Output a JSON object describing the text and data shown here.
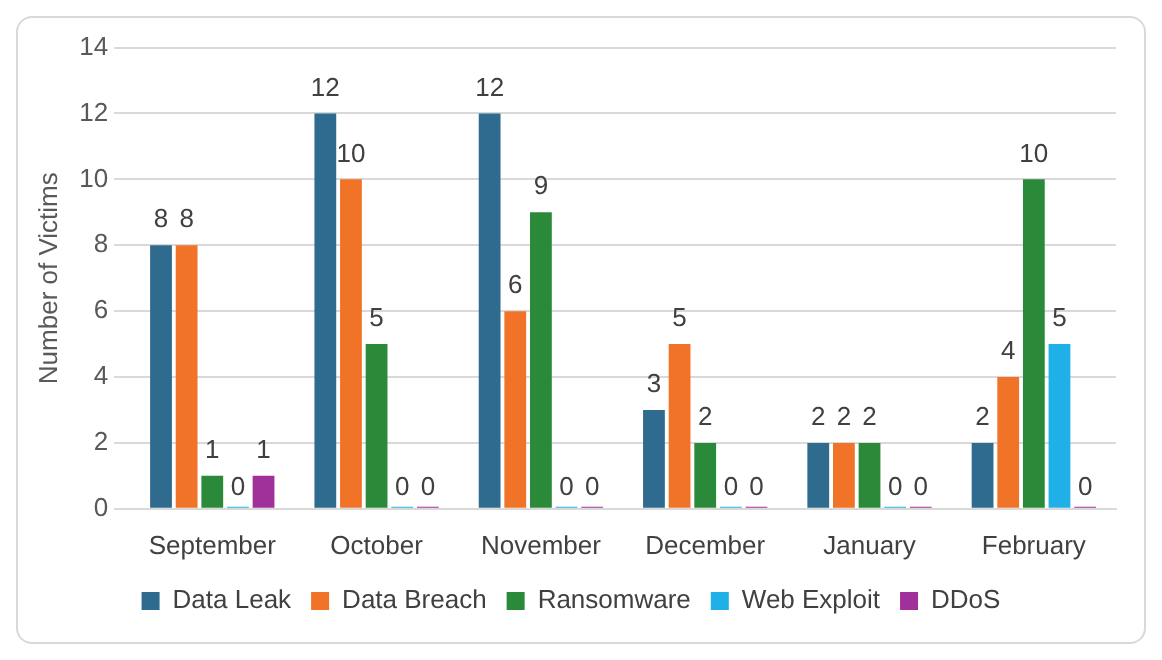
{
  "chart_data": {
    "type": "bar",
    "ylabel": "Number of Victims",
    "categories": [
      "September",
      "October",
      "November",
      "December",
      "January",
      "February"
    ],
    "series": [
      {
        "name": "Data Leak",
        "color": "#2e6b8f",
        "values": [
          8,
          12,
          12,
          3,
          2,
          2
        ]
      },
      {
        "name": "Data Breach",
        "color": "#f07328",
        "values": [
          8,
          10,
          6,
          5,
          2,
          4
        ]
      },
      {
        "name": "Ransomware",
        "color": "#2a8a3a",
        "values": [
          1,
          5,
          9,
          2,
          2,
          10
        ]
      },
      {
        "name": "Web Exploit",
        "color": "#1fb0e8",
        "values": [
          0,
          0,
          0,
          0,
          0,
          5
        ]
      },
      {
        "name": "DDoS",
        "color": "#a0309a",
        "values": [
          1,
          0,
          0,
          0,
          0,
          0
        ]
      }
    ],
    "ylim": [
      0,
      14
    ],
    "yticks": [
      0,
      2,
      4,
      6,
      8,
      10,
      12,
      14
    ],
    "grid": "y",
    "legend": "bottom",
    "data_labels": true
  }
}
